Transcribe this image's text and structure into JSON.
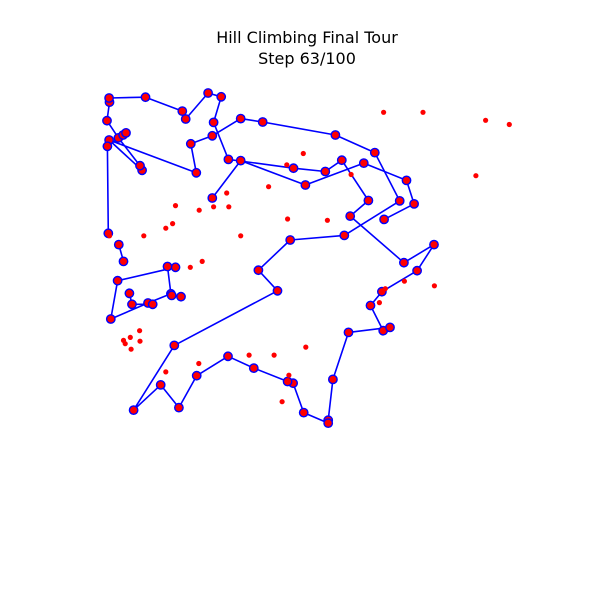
{
  "chart_data": {
    "type": "line",
    "title_lines": [
      "Hill Climbing Final Tour",
      "Step 63/100"
    ],
    "axes_visible": false,
    "grid": false,
    "xlim": [
      0,
      1
    ],
    "ylim": [
      0,
      1
    ],
    "colors": {
      "tour_line": "#0000ff",
      "tour_marker_edge": "#0000ff",
      "tour_marker_fill": "#ff0000",
      "unvisited_point": "#ff0000",
      "background": "#ffffff"
    },
    "series": [
      {
        "kind": "tour",
        "closed": true,
        "points": [
          [
            0.031,
            0.888
          ],
          [
            0.109,
            0.816
          ],
          [
            0.104,
            0.827
          ],
          [
            0.053,
            0.893
          ],
          [
            0.026,
            0.934
          ],
          [
            0.032,
            0.978
          ],
          [
            0.031,
            0.988
          ],
          [
            0.117,
            0.99
          ],
          [
            0.204,
            0.957
          ],
          [
            0.212,
            0.938
          ],
          [
            0.265,
            1.0
          ],
          [
            0.296,
            0.991
          ],
          [
            0.278,
            0.93
          ],
          [
            0.313,
            0.842
          ],
          [
            0.467,
            0.821
          ],
          [
            0.542,
            0.813
          ],
          [
            0.581,
            0.84
          ],
          [
            0.644,
            0.744
          ],
          [
            0.601,
            0.707
          ],
          [
            0.728,
            0.596
          ],
          [
            0.799,
            0.639
          ],
          [
            0.759,
            0.577
          ],
          [
            0.676,
            0.527
          ],
          [
            0.649,
            0.494
          ],
          [
            0.679,
            0.434
          ],
          [
            0.695,
            0.442
          ],
          [
            0.597,
            0.43
          ],
          [
            0.56,
            0.318
          ],
          [
            0.549,
            0.221
          ],
          [
            0.549,
            0.214
          ],
          [
            0.491,
            0.239
          ],
          [
            0.466,
            0.309
          ],
          [
            0.453,
            0.313
          ],
          [
            0.373,
            0.345
          ],
          [
            0.312,
            0.373
          ],
          [
            0.238,
            0.327
          ],
          [
            0.196,
            0.251
          ],
          [
            0.153,
            0.305
          ],
          [
            0.089,
            0.245
          ],
          [
            0.185,
            0.399
          ],
          [
            0.429,
            0.529
          ],
          [
            0.384,
            0.578
          ],
          [
            0.459,
            0.65
          ],
          [
            0.587,
            0.661
          ],
          [
            0.718,
            0.743
          ],
          [
            0.659,
            0.858
          ],
          [
            0.566,
            0.9
          ],
          [
            0.394,
            0.931
          ],
          [
            0.342,
            0.939
          ],
          [
            0.275,
            0.898
          ],
          [
            0.224,
            0.879
          ],
          [
            0.237,
            0.81
          ]
        ]
      },
      {
        "kind": "tour",
        "closed": false,
        "points": [
          [
            0.275,
            0.75
          ],
          [
            0.342,
            0.839
          ],
          [
            0.495,
            0.781
          ],
          [
            0.633,
            0.833
          ],
          [
            0.734,
            0.792
          ],
          [
            0.752,
            0.736
          ],
          [
            0.681,
            0.699
          ]
        ]
      },
      {
        "kind": "tour",
        "closed": true,
        "points": [
          [
            0.188,
            0.585
          ],
          [
            0.169,
            0.587
          ],
          [
            0.177,
            0.522
          ],
          [
            0.123,
            0.5
          ],
          [
            0.035,
            0.462
          ],
          [
            0.051,
            0.553
          ]
        ]
      },
      {
        "kind": "tour",
        "closed": false,
        "points": [
          [
            0.029,
            0.666
          ],
          [
            0.027,
            0.873
          ],
          [
            0.064,
            0.9
          ],
          [
            0.071,
            0.905
          ]
        ]
      },
      {
        "kind": "tour",
        "closed": false,
        "points": [
          [
            0.065,
            0.599
          ],
          [
            0.054,
            0.639
          ]
        ]
      },
      {
        "kind": "tour",
        "closed": false,
        "points": [
          [
            0.201,
            0.515
          ],
          [
            0.179,
            0.518
          ]
        ]
      },
      {
        "kind": "tour",
        "closed": false,
        "points": [
          [
            0.134,
            0.497
          ],
          [
            0.085,
            0.497
          ],
          [
            0.079,
            0.523
          ]
        ]
      },
      {
        "kind": "unvisited",
        "points": [
          [
            0.68,
            0.954
          ],
          [
            0.773,
            0.954
          ],
          [
            0.921,
            0.935
          ],
          [
            0.977,
            0.925
          ],
          [
            0.49,
            0.856
          ],
          [
            0.451,
            0.829
          ],
          [
            0.603,
            0.806
          ],
          [
            0.898,
            0.803
          ],
          [
            0.408,
            0.777
          ],
          [
            0.453,
            0.7
          ],
          [
            0.547,
            0.697
          ],
          [
            0.342,
            0.66
          ],
          [
            0.188,
            0.732
          ],
          [
            0.278,
            0.729
          ],
          [
            0.314,
            0.729
          ],
          [
            0.309,
            0.762
          ],
          [
            0.244,
            0.721
          ],
          [
            0.181,
            0.689
          ],
          [
            0.165,
            0.678
          ],
          [
            0.032,
            0.66
          ],
          [
            0.113,
            0.66
          ],
          [
            0.729,
            0.552
          ],
          [
            0.8,
            0.541
          ],
          [
            0.684,
            0.534
          ],
          [
            0.67,
            0.501
          ],
          [
            0.251,
            0.599
          ],
          [
            0.223,
            0.585
          ],
          [
            0.103,
            0.434
          ],
          [
            0.069,
            0.403
          ],
          [
            0.104,
            0.409
          ],
          [
            0.083,
            0.39
          ],
          [
            0.421,
            0.376
          ],
          [
            0.496,
            0.395
          ],
          [
            0.362,
            0.376
          ],
          [
            0.456,
            0.328
          ],
          [
            0.44,
            0.265
          ],
          [
            0.243,
            0.356
          ],
          [
            0.165,
            0.336
          ],
          [
            0.065,
            0.411
          ],
          [
            0.081,
            0.418
          ]
        ]
      }
    ]
  }
}
